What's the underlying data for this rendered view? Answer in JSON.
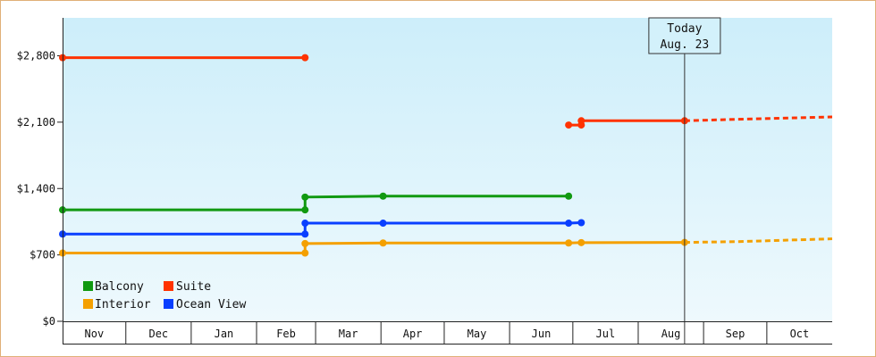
{
  "chart_data": {
    "type": "line",
    "title": "",
    "xlabel": "",
    "ylabel": "",
    "x_unit": "days since Nov 1",
    "xlim": [
      0,
      365
    ],
    "ylim": [
      0,
      3200
    ],
    "y_ticks": [
      {
        "value": 0,
        "label": "$0"
      },
      {
        "value": 700,
        "label": "$700"
      },
      {
        "value": 1400,
        "label": "$1,400"
      },
      {
        "value": 2100,
        "label": "$2,100"
      },
      {
        "value": 2800,
        "label": "$2,800"
      }
    ],
    "months": [
      "Nov",
      "Dec",
      "Jan",
      "Feb",
      "Mar",
      "Apr",
      "May",
      "Jun",
      "Jul",
      "Aug",
      "Sep",
      "Oct"
    ],
    "today": {
      "line1": "Today",
      "line2": "Aug. 23",
      "x": 295
    },
    "grid": false,
    "legend_position": "bottom-left",
    "background": {
      "top": "#cdeefa",
      "bottom": "#eef9fd"
    },
    "series": [
      {
        "name": "Balcony",
        "color": "#119911",
        "step": true,
        "points": [
          [
            0,
            1175
          ],
          [
            115,
            1175
          ],
          [
            115,
            1310
          ],
          [
            152,
            1320
          ],
          [
            240,
            1320
          ]
        ],
        "projection": []
      },
      {
        "name": "Suite",
        "color": "#ff3300",
        "step": true,
        "points": [
          [
            0,
            2780
          ],
          [
            115,
            2780
          ]
        ],
        "segments": [
          [
            [
              240,
              2070
            ],
            [
              246,
              2070
            ],
            [
              246,
              2115
            ],
            [
              295,
              2115
            ]
          ]
        ],
        "projection": [
          [
            295,
            2115
          ],
          [
            320,
            2130
          ],
          [
            365,
            2155
          ]
        ]
      },
      {
        "name": "Interior",
        "color": "#f4a000",
        "step": true,
        "points": [
          [
            0,
            720
          ],
          [
            115,
            720
          ],
          [
            115,
            820
          ],
          [
            152,
            826
          ],
          [
            240,
            826
          ],
          [
            246,
            830
          ],
          [
            295,
            832
          ]
        ],
        "projection": [
          [
            295,
            832
          ],
          [
            320,
            840
          ],
          [
            365,
            870
          ]
        ]
      },
      {
        "name": "Ocean View",
        "color": "#0a3fff",
        "step": true,
        "points": [
          [
            0,
            920
          ],
          [
            115,
            920
          ],
          [
            115,
            1035
          ],
          [
            152,
            1035
          ],
          [
            240,
            1035
          ],
          [
            246,
            1040
          ]
        ],
        "projection": []
      }
    ]
  }
}
